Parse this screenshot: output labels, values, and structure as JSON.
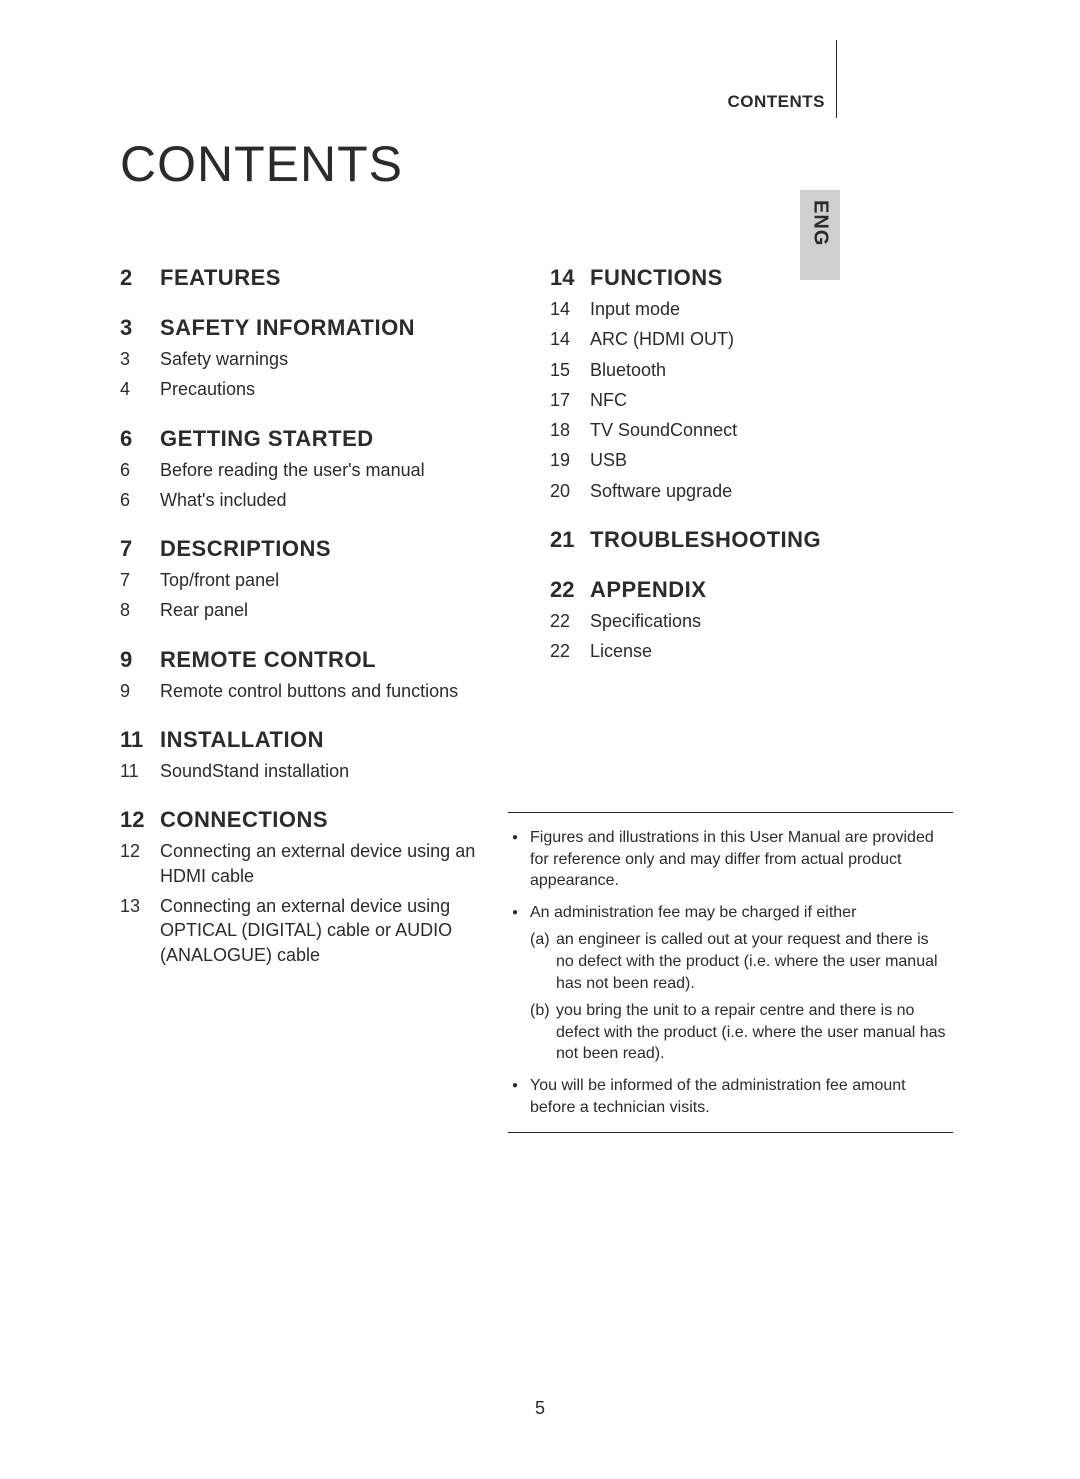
{
  "header_label": "CONTENTS",
  "lang_tab": "ENG",
  "title": "CONTENTS",
  "page_number": "5",
  "colors": {
    "text": "#2b2b2b",
    "tab_bg": "#cfcfcf",
    "background": "#ffffff"
  },
  "left_col": [
    {
      "type": "head",
      "page": "2",
      "title": "FEATURES"
    },
    {
      "type": "head",
      "page": "3",
      "title": "SAFETY INFORMATION"
    },
    {
      "type": "entry",
      "page": "3",
      "text": "Safety warnings"
    },
    {
      "type": "entry",
      "page": "4",
      "text": "Precautions"
    },
    {
      "type": "head",
      "page": "6",
      "title": "GETTING STARTED"
    },
    {
      "type": "entry",
      "page": "6",
      "text": "Before reading the user's manual"
    },
    {
      "type": "entry",
      "page": "6",
      "text": "What's included"
    },
    {
      "type": "head",
      "page": "7",
      "title": "DESCRIPTIONS"
    },
    {
      "type": "entry",
      "page": "7",
      "text": "Top/front panel"
    },
    {
      "type": "entry",
      "page": "8",
      "text": "Rear panel"
    },
    {
      "type": "head",
      "page": "9",
      "title": "REMOTE CONTROL"
    },
    {
      "type": "entry",
      "page": "9",
      "text": "Remote control buttons and functions"
    },
    {
      "type": "head",
      "page": "11",
      "title": "INSTALLATION"
    },
    {
      "type": "entry",
      "page": "11",
      "text": "SoundStand installation"
    },
    {
      "type": "head",
      "page": "12",
      "title": "CONNECTIONS"
    },
    {
      "type": "entry",
      "page": "12",
      "text": "Connecting an external device using an HDMI cable"
    },
    {
      "type": "entry",
      "page": "13",
      "text": "Connecting an external device using OPTICAL (DIGITAL) cable or AUDIO (ANALOGUE) cable"
    }
  ],
  "right_col": [
    {
      "type": "head",
      "page": "14",
      "title": "FUNCTIONS"
    },
    {
      "type": "entry",
      "page": "14",
      "text": "Input mode"
    },
    {
      "type": "entry",
      "page": "14",
      "text": "ARC (HDMI OUT)"
    },
    {
      "type": "entry",
      "page": "15",
      "text": "Bluetooth"
    },
    {
      "type": "entry",
      "page": "17",
      "text": "NFC"
    },
    {
      "type": "entry",
      "page": "18",
      "text": "TV SoundConnect"
    },
    {
      "type": "entry",
      "page": "19",
      "text": "USB"
    },
    {
      "type": "entry",
      "page": "20",
      "text": "Software upgrade"
    },
    {
      "type": "head",
      "page": "21",
      "title": "TROUBLESHOOTING"
    },
    {
      "type": "head",
      "page": "22",
      "title": "APPENDIX"
    },
    {
      "type": "entry",
      "page": "22",
      "text": "Specifications"
    },
    {
      "type": "entry",
      "page": "22",
      "text": "License"
    }
  ],
  "notes": [
    {
      "text": "Figures and illustrations in this User Manual are provided for reference only and may differ from actual product appearance."
    },
    {
      "text": "An administration fee may be charged if either",
      "subs": [
        {
          "label": "(a)",
          "text": "an engineer is called out at your request and there is no defect with the product (i.e. where the user manual has not been read)."
        },
        {
          "label": "(b)",
          "text": "you bring the unit to a repair centre and there is no defect with the product (i.e. where the user manual has not been read)."
        }
      ]
    },
    {
      "text": "You will be informed of the administration fee amount before a technician visits."
    }
  ]
}
